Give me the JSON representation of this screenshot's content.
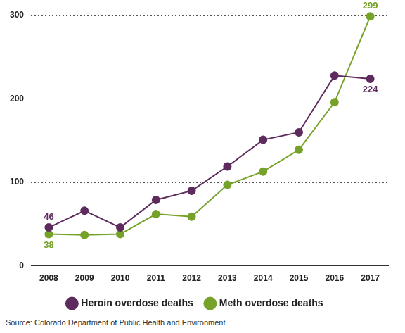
{
  "chart_data": {
    "type": "line",
    "categories": [
      "2008",
      "2009",
      "2010",
      "2011",
      "2012",
      "2013",
      "2014",
      "2015",
      "2016",
      "2017"
    ],
    "series": [
      {
        "name": "Heroin overdose deaths",
        "color": "#5d2b5e",
        "marker": "circle",
        "values": [
          46,
          66,
          46,
          79,
          90,
          119,
          151,
          160,
          228,
          224
        ],
        "value_labels": [
          "46",
          null,
          null,
          null,
          null,
          null,
          null,
          null,
          null,
          "224"
        ]
      },
      {
        "name": "Meth overdose deaths",
        "color": "#76a22a",
        "marker": "circle",
        "values": [
          38,
          37,
          38,
          62,
          59,
          97,
          113,
          139,
          196,
          299
        ],
        "value_labels": [
          "38",
          null,
          null,
          null,
          null,
          null,
          null,
          null,
          null,
          "299"
        ]
      }
    ],
    "ylim": [
      0,
      300
    ],
    "yticks": [
      0,
      100,
      200,
      300
    ],
    "grid": true,
    "legend": "bottom",
    "data_labels": true,
    "source": "Source: Colorado Department of Public Health and Environment"
  }
}
